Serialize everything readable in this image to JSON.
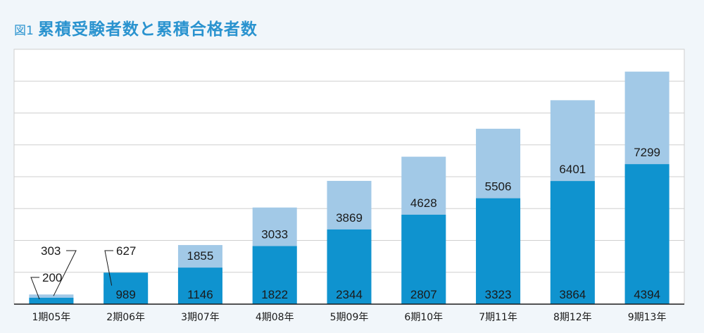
{
  "header": {
    "fig_label": "図1",
    "title": "累積受験者数と累積合格者数"
  },
  "colors": {
    "background": "#f1f6fa",
    "title": "#2a93cf",
    "applicants_bar": "#a2c9e7",
    "passers_bar": "#0f93cf",
    "gridline": "#cfcfcf",
    "axis": "#1a1a1a"
  },
  "chart_data": {
    "type": "bar",
    "title": "累積受験者数と累積合格者数",
    "categories": [
      "1期05年",
      "2期06年",
      "3期07年",
      "4期08年",
      "5期09年",
      "6期10年",
      "7期11年",
      "8期12年",
      "9期13年"
    ],
    "series": [
      {
        "values": [
          303,
          627,
          1855,
          3033,
          3869,
          4628,
          5506,
          6401,
          7299
        ]
      },
      {
        "values": [
          200,
          989,
          1146,
          1822,
          2344,
          2807,
          3323,
          3864,
          4394
        ]
      }
    ],
    "layout_note": "overlapping bars: the lighter bar is the cumulative applicants total; the darker bar is the cumulative passers drawn from the baseline",
    "ylim": [
      0,
      8000
    ],
    "grid": true,
    "legend": "none"
  }
}
